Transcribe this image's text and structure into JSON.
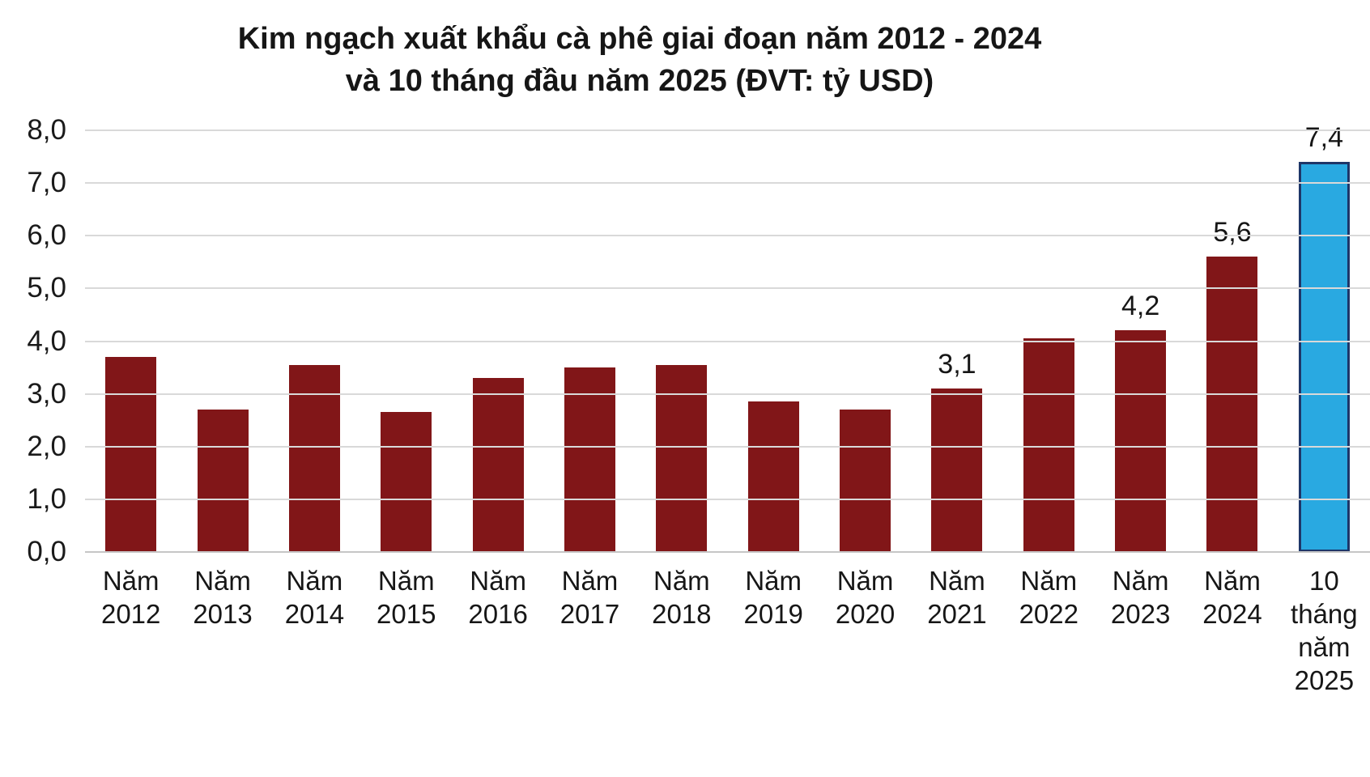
{
  "title": {
    "line1": "Kim ngạch xuất khẩu cà phê giai đoạn năm 2012 - 2024",
    "line2": "và 10 tháng đầu năm 2025 (ĐVT: tỷ USD)"
  },
  "chart_data": {
    "type": "bar",
    "title": "Kim ngạch xuất khẩu cà phê giai đoạn năm 2012 - 2024 và 10 tháng đầu năm 2025 (ĐVT: tỷ USD)",
    "unit": "tỷ USD",
    "categories": [
      "Năm 2012",
      "Năm 2013",
      "Năm 2014",
      "Năm 2015",
      "Năm 2016",
      "Năm 2017",
      "Năm 2018",
      "Năm 2019",
      "Năm 2020",
      "Năm 2021",
      "Năm 2022",
      "Năm 2023",
      "Năm 2024",
      "10 tháng năm 2025"
    ],
    "x_tick_lines": [
      [
        "Năm",
        "2012"
      ],
      [
        "Năm",
        "2013"
      ],
      [
        "Năm",
        "2014"
      ],
      [
        "Năm",
        "2015"
      ],
      [
        "Năm",
        "2016"
      ],
      [
        "Năm",
        "2017"
      ],
      [
        "Năm",
        "2018"
      ],
      [
        "Năm",
        "2019"
      ],
      [
        "Năm",
        "2020"
      ],
      [
        "Năm",
        "2021"
      ],
      [
        "Năm",
        "2022"
      ],
      [
        "Năm",
        "2023"
      ],
      [
        "Năm",
        "2024"
      ],
      [
        "10",
        "tháng",
        "năm",
        "2025"
      ]
    ],
    "values": [
      3.7,
      2.7,
      3.55,
      2.65,
      3.3,
      3.5,
      3.55,
      2.85,
      2.7,
      3.1,
      4.05,
      4.2,
      5.6,
      7.4
    ],
    "data_labels": [
      null,
      null,
      null,
      null,
      null,
      null,
      null,
      null,
      null,
      "3,1",
      null,
      "4,2",
      "5,6",
      "7,4"
    ],
    "highlight_index": 13,
    "ylim": [
      0,
      8
    ],
    "y_axis_ticks": [
      "8,0",
      "7,0",
      "6,0",
      "5,0",
      "4,0",
      "3,0",
      "2,0",
      "1,0",
      "0,0"
    ],
    "grid": true,
    "legend": "none",
    "colors": {
      "bar": "#811618",
      "highlight_fill": "#29a9e1",
      "highlight_border": "#1e3668",
      "gridline": "#d9d9d9",
      "text": "#161616"
    }
  }
}
